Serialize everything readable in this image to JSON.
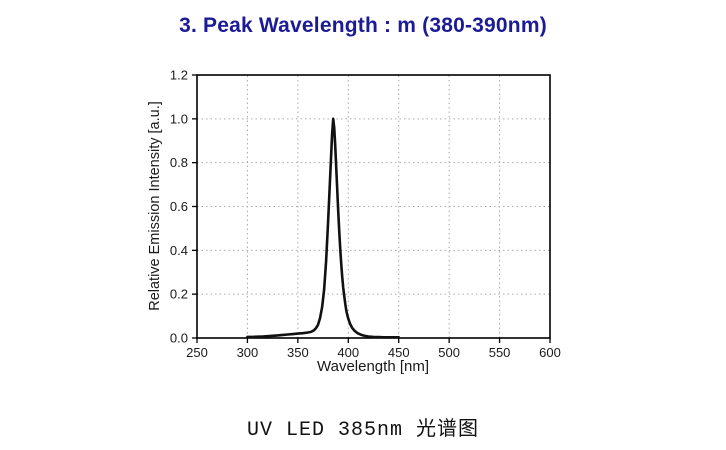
{
  "title": {
    "text": "3. Peak Wavelength : m (380-390nm)",
    "color": "#1b1b96"
  },
  "caption": {
    "text": "UV LED 385nm 光谱图"
  },
  "chart_data": {
    "type": "line",
    "title": "",
    "xlabel": "Wavelength [nm]",
    "ylabel": "Relative Emission Intensity [a.u.]",
    "xlim": [
      250,
      600
    ],
    "ylim": [
      0,
      1.2
    ],
    "xticks": [
      250,
      300,
      350,
      400,
      450,
      500,
      550,
      600
    ],
    "yticks": [
      0.0,
      0.2,
      0.4,
      0.6,
      0.8,
      1.0,
      1.2
    ],
    "grid": true,
    "legend": false,
    "grid_color": "#aaaaaa",
    "axis_color": "#000000",
    "tick_label_color": "#1a1a1a",
    "peak_wavelength_nm": 385,
    "peak_intensity": 1.0,
    "series": [
      {
        "name": "UV LED 385nm emission spectrum",
        "color": "#111111",
        "points": [
          [
            300,
            0.005
          ],
          [
            305,
            0.005
          ],
          [
            310,
            0.006
          ],
          [
            315,
            0.007
          ],
          [
            320,
            0.008
          ],
          [
            325,
            0.01
          ],
          [
            330,
            0.012
          ],
          [
            335,
            0.014
          ],
          [
            340,
            0.016
          ],
          [
            345,
            0.018
          ],
          [
            350,
            0.02
          ],
          [
            355,
            0.022
          ],
          [
            360,
            0.025
          ],
          [
            363,
            0.028
          ],
          [
            366,
            0.035
          ],
          [
            368,
            0.045
          ],
          [
            370,
            0.06
          ],
          [
            372,
            0.09
          ],
          [
            374,
            0.14
          ],
          [
            376,
            0.22
          ],
          [
            378,
            0.35
          ],
          [
            380,
            0.53
          ],
          [
            381,
            0.63
          ],
          [
            382,
            0.73
          ],
          [
            383,
            0.83
          ],
          [
            384,
            0.93
          ],
          [
            385,
            1.0
          ],
          [
            386,
            0.96
          ],
          [
            387,
            0.88
          ],
          [
            388,
            0.78
          ],
          [
            389,
            0.68
          ],
          [
            390,
            0.58
          ],
          [
            391,
            0.49
          ],
          [
            392,
            0.41
          ],
          [
            393,
            0.34
          ],
          [
            394,
            0.28
          ],
          [
            395,
            0.23
          ],
          [
            396,
            0.19
          ],
          [
            397,
            0.155
          ],
          [
            398,
            0.125
          ],
          [
            399,
            0.105
          ],
          [
            400,
            0.088
          ],
          [
            402,
            0.062
          ],
          [
            404,
            0.045
          ],
          [
            406,
            0.034
          ],
          [
            408,
            0.026
          ],
          [
            410,
            0.02
          ],
          [
            413,
            0.014
          ],
          [
            416,
            0.01
          ],
          [
            420,
            0.007
          ],
          [
            425,
            0.005
          ],
          [
            430,
            0.004
          ],
          [
            435,
            0.003
          ],
          [
            440,
            0.003
          ],
          [
            445,
            0.003
          ],
          [
            450,
            0.003
          ]
        ]
      }
    ]
  }
}
